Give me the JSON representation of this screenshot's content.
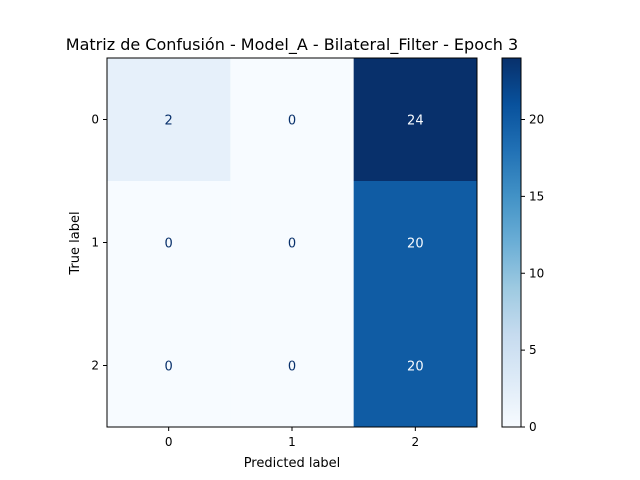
{
  "chart_data": {
    "type": "heatmap",
    "title": "Matriz de Confusión - Model_A - Bilateral_Filter - Epoch 3",
    "xlabel": "Predicted label",
    "ylabel": "True label",
    "x_categories": [
      "0",
      "1",
      "2"
    ],
    "y_categories": [
      "0",
      "1",
      "2"
    ],
    "matrix": [
      [
        2,
        0,
        24
      ],
      [
        0,
        0,
        20
      ],
      [
        0,
        0,
        20
      ]
    ],
    "colormap": "Blues",
    "vmin": 0,
    "vmax": 24,
    "colorbar_ticks": [
      0,
      5,
      10,
      15,
      20
    ],
    "colors": {
      "low": "#f7fbff",
      "high": "#08306b",
      "text_dark": "#08306b",
      "text_light": "#f7fbff"
    }
  }
}
